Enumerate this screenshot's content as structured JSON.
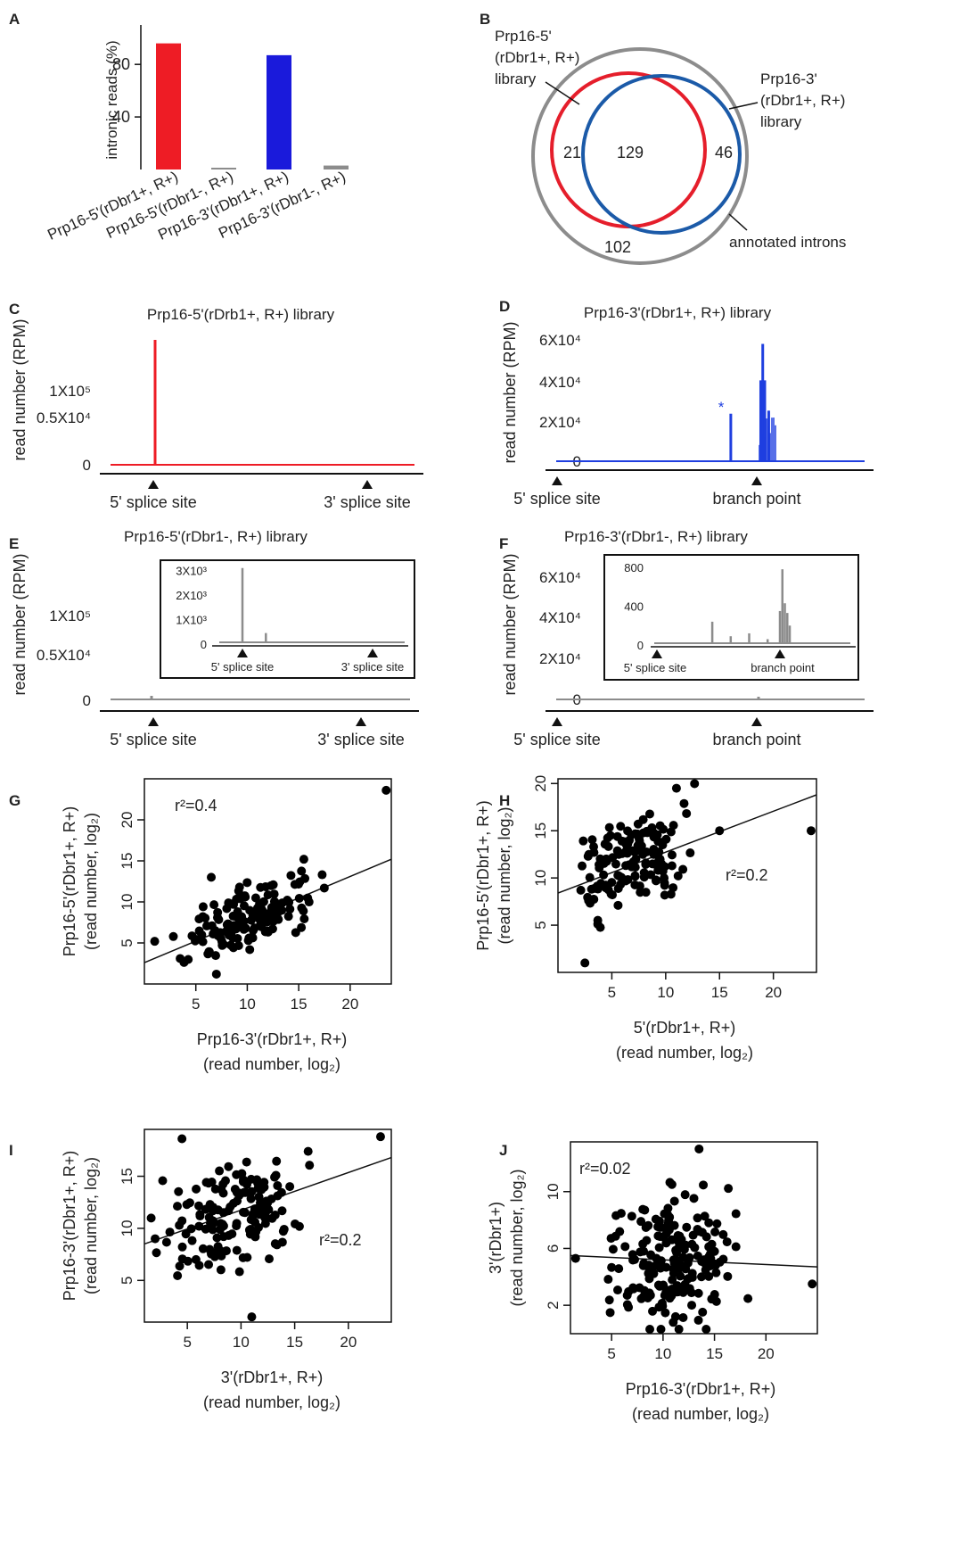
{
  "colors": {
    "red": "#ee1c25",
    "blue": "#1a1adb",
    "venn_red": "#e51e2b",
    "venn_blue": "#1b5aa8",
    "grey": "#8c8c8c",
    "trace_blue": "#1f3fe0"
  },
  "panels": {
    "A": "A",
    "B": "B",
    "C": "C",
    "D": "D",
    "E": "E",
    "F": "F",
    "G": "G",
    "H": "H",
    "I": "I",
    "J": "J"
  },
  "chart_data": [
    {
      "panel": "A",
      "type": "bar",
      "ylabel": "intronic reads (%)",
      "yticks": [
        "40",
        "80"
      ],
      "ylim": [
        0,
        110
      ],
      "categories": [
        "Prp16-5'(rDbr1+, R+)",
        "Prp16-5'(rDbr1-, R+)",
        "Prp16-3'(rDbr1+, R+)",
        "Prp16-3'(rDbr1-, R+)"
      ],
      "values": [
        96,
        0.5,
        87,
        3
      ],
      "bar_colors": [
        "#ee1c25",
        "#8c8c8c",
        "#1a1adb",
        "#8c8c8c"
      ]
    },
    {
      "panel": "B",
      "type": "venn",
      "sets": [
        {
          "label_lines": [
            "Prp16-5'",
            "(rDbr1+, R+)",
            "library"
          ],
          "color": "#e51e2b"
        },
        {
          "label_lines": [
            "Prp16-3'",
            "(rDbr1+, R+)",
            "library"
          ],
          "color": "#1b5aa8"
        },
        {
          "label_lines": [
            "annotated introns"
          ],
          "color": "#8c8c8c"
        }
      ],
      "counts": {
        "only_5": "21",
        "both": "129",
        "only_3": "46",
        "annotated_only": "102"
      }
    },
    {
      "panel": "C",
      "type": "line",
      "title": "Prp16-5'(rDrb1+, R+) library",
      "ylabel": "read number (RPM)",
      "yticks": [
        "1X10⁵",
        "0.5X10⁴",
        "0"
      ],
      "xmarkers": [
        "5' splice site",
        "3' splice site"
      ],
      "peaks": [
        {
          "position": "5' splice site",
          "value": 130000
        }
      ],
      "color": "#ee1c25"
    },
    {
      "panel": "D",
      "type": "line",
      "title": "Prp16-3'(rDbr1+, R+) library",
      "ylabel": "read number (RPM)",
      "yticks": [
        "6X10⁴",
        "4X10⁴",
        "2X10⁴",
        "0"
      ],
      "ylim": [
        0,
        60000
      ],
      "xmarkers": [
        "5' splice site",
        "branch point"
      ],
      "annotation": "*",
      "peaks": [
        {
          "offset": -0.13,
          "value": 23500
        },
        {
          "offset": 0.02,
          "value": 40000
        },
        {
          "offset": 0.03,
          "value": 58000
        },
        {
          "offset": 0.04,
          "value": 40000
        },
        {
          "offset": 0.06,
          "value": 25000
        }
      ],
      "color": "#1f3fe0"
    },
    {
      "panel": "E",
      "type": "line",
      "title": "Prp16-5'(rDbr1-, R+) library",
      "ylabel": "read number (RPM)",
      "yticks": [
        "1X10⁵",
        "0.5X10⁴",
        "0"
      ],
      "xmarkers": [
        "5' splice site",
        "3' splice site"
      ],
      "inset": {
        "yticks": [
          "3X10³",
          "2X10³",
          "1X10³",
          "0"
        ],
        "ylim": [
          0,
          3200
        ],
        "xmarkers": [
          "5' splice site",
          "3' splice site"
        ],
        "peaks": [
          {
            "offset": 0.0,
            "value": 3100
          },
          {
            "offset": 0.18,
            "value": 450
          }
        ]
      },
      "color": "#8c8c8c"
    },
    {
      "panel": "F",
      "type": "line",
      "title": "Prp16-3'(rDbr1-, R+) library",
      "ylabel": "read number (RPM)",
      "yticks": [
        "6X10⁴",
        "4X10⁴",
        "2X10⁴",
        "0"
      ],
      "xmarkers": [
        "5' splice site",
        "branch point"
      ],
      "inset": {
        "yticks": [
          "800",
          "400",
          "0"
        ],
        "ylim": [
          0,
          800
        ],
        "xmarkers": [
          "5' splice site",
          "branch point"
        ],
        "peaks": [
          {
            "offset": -0.55,
            "value": 240
          },
          {
            "offset": -0.4,
            "value": 90
          },
          {
            "offset": -0.25,
            "value": 120
          },
          {
            "offset": -0.1,
            "value": 60
          },
          {
            "offset": 0.0,
            "value": 350
          },
          {
            "offset": 0.02,
            "value": 780
          },
          {
            "offset": 0.04,
            "value": 430
          },
          {
            "offset": 0.06,
            "value": 330
          },
          {
            "offset": 0.08,
            "value": 200
          }
        ]
      },
      "color": "#8c8c8c"
    },
    {
      "panel": "G",
      "type": "scatter",
      "annotation": "r²=0.4",
      "xlabel": [
        "Prp16-3'(rDbr1+, R+)",
        "(read number, log₂)"
      ],
      "ylabel": [
        "Prp16-5'(rDbr1+, R+)",
        "(read number, log₂)"
      ],
      "xticks": [
        "5",
        "10",
        "15",
        "20"
      ],
      "yticks": [
        "5",
        "10",
        "15",
        "20"
      ],
      "xlim": [
        0,
        24
      ],
      "ylim": [
        0,
        25
      ],
      "fit": {
        "x": [
          0,
          24
        ],
        "y": [
          2.6,
          15.2
        ]
      }
    },
    {
      "panel": "H",
      "type": "scatter",
      "annotation": "r²=0.2",
      "xlabel": [
        "5'(rDbr1+, R+)",
        "(read number, log₂)"
      ],
      "ylabel": [
        "Prp16-5'(rDbr1+, R+)",
        "(read number, log₂)"
      ],
      "xticks": [
        "5",
        "10",
        "15",
        "20"
      ],
      "yticks": [
        "5",
        "10",
        "15",
        "20"
      ],
      "xlim": [
        0,
        24
      ],
      "ylim": [
        0,
        20.5
      ],
      "fit": {
        "x": [
          0,
          24
        ],
        "y": [
          8.4,
          18.8
        ]
      }
    },
    {
      "panel": "I",
      "type": "scatter",
      "annotation": "r²=0.2",
      "xlabel": [
        "3'(rDbr1+, R+)",
        "(read number, log₂)"
      ],
      "ylabel": [
        "Prp16-3'(rDbr1+, R+)",
        "(read number, log₂)"
      ],
      "xticks": [
        "5",
        "10",
        "15",
        "20"
      ],
      "yticks": [
        "5",
        "10",
        "15"
      ],
      "xlim": [
        1,
        24
      ],
      "ylim": [
        1,
        19.5
      ],
      "fit": {
        "x": [
          1,
          24
        ],
        "y": [
          8.5,
          16.8
        ]
      }
    },
    {
      "panel": "J",
      "type": "scatter",
      "annotation": "r²=0.02",
      "xlabel": [
        "Prp16-3'(rDbr1+, R+)",
        "(read number, log₂)"
      ],
      "ylabel": [
        "3'(rDbr1+)",
        "(read number, log₂)"
      ],
      "xticks": [
        "5",
        "10",
        "15",
        "20"
      ],
      "yticks": [
        "2",
        "6",
        "10"
      ],
      "xlim": [
        1,
        25
      ],
      "ylim": [
        0,
        13.5
      ],
      "fit": {
        "x": [
          1,
          25
        ],
        "y": [
          5.5,
          4.7
        ]
      }
    }
  ]
}
